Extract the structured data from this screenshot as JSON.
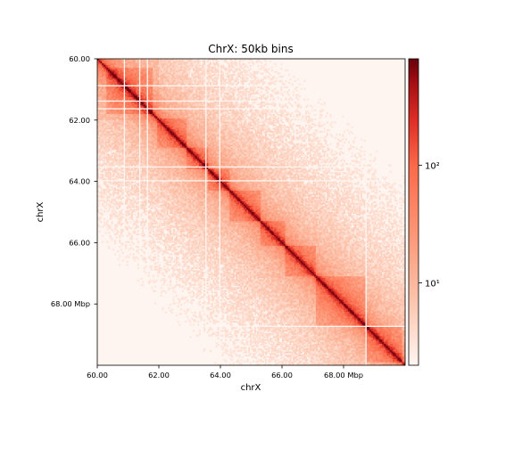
{
  "chart_data": {
    "type": "heatmap",
    "title": "ChrX: 50kb bins",
    "xlabel": "chrX",
    "ylabel": "chrX",
    "unit": "Mbp",
    "xlim": [
      60.0,
      70.0
    ],
    "ylim": [
      60.0,
      70.0
    ],
    "bin_size_mbp": 0.05,
    "x_ticks": [
      "60.00",
      "62.00",
      "64.00",
      "66.00",
      "68.00"
    ],
    "y_ticks": [
      "60.00",
      "62.00",
      "64.00",
      "66.00",
      "68.00"
    ],
    "colormap": "Reds",
    "color_min": "#fff5f0",
    "color_max": "#67000d",
    "colorbar": {
      "scale": "log",
      "range": [
        2,
        800
      ],
      "ticks": [
        {
          "value": 10,
          "label": "10¹"
        },
        {
          "value": 100,
          "label": "10²"
        }
      ]
    },
    "domains_mbp": [
      [
        60.3,
        61.8
      ],
      [
        61.95,
        62.9
      ],
      [
        62.9,
        63.6
      ],
      [
        63.6,
        64.3
      ],
      [
        64.3,
        65.3
      ],
      [
        65.3,
        66.1
      ],
      [
        66.1,
        67.1
      ],
      [
        67.1,
        68.7
      ],
      [
        68.7,
        69.9
      ]
    ],
    "gap_bins_mbp": [
      60.85,
      61.35,
      61.65,
      63.5,
      63.95,
      68.7
    ]
  }
}
